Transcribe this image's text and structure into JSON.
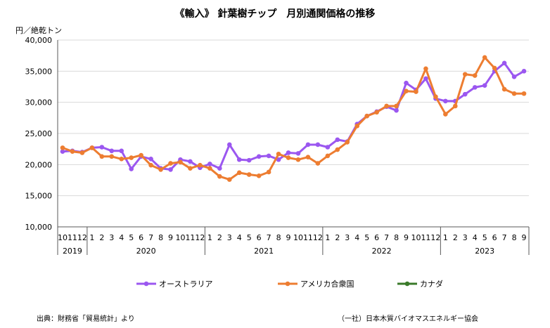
{
  "chart_data": {
    "type": "line",
    "title": "《輸入》 針葉樹チップ　月別通関価格の推移",
    "ylabel": "円／絶乾トン",
    "ylim": [
      10000,
      40000
    ],
    "yticks": [
      "10,000",
      "15,000",
      "20,000",
      "25,000",
      "30,000",
      "35,000",
      "40,000"
    ],
    "ytick_values": [
      10000,
      15000,
      20000,
      25000,
      30000,
      35000,
      40000
    ],
    "grid": "horizontal",
    "legend_position": "bottom",
    "months": [
      "10",
      "11",
      "12",
      "1",
      "2",
      "3",
      "4",
      "5",
      "6",
      "7",
      "8",
      "9",
      "10",
      "11",
      "12",
      "1",
      "2",
      "3",
      "4",
      "5",
      "6",
      "7",
      "8",
      "9",
      "10",
      "11",
      "12",
      "1",
      "2",
      "3",
      "4",
      "5",
      "6",
      "7",
      "8",
      "9",
      "10",
      "11",
      "12",
      "1",
      "2",
      "3",
      "4",
      "5",
      "6",
      "7",
      "8",
      "9"
    ],
    "years": [
      {
        "label": "2019",
        "count": 3
      },
      {
        "label": "2020",
        "count": 12
      },
      {
        "label": "2021",
        "count": 12
      },
      {
        "label": "2022",
        "count": 12
      },
      {
        "label": "2023",
        "count": 9
      }
    ],
    "series": [
      {
        "name": "オーストラリア",
        "color": "#9b57f0",
        "values": [
          22100,
          22200,
          22000,
          22700,
          22800,
          22200,
          22200,
          19300,
          21300,
          20900,
          19400,
          19200,
          20800,
          20500,
          19500,
          20100,
          19400,
          23200,
          20800,
          20700,
          21300,
          21400,
          20800,
          21900,
          21800,
          23200,
          23200,
          22800,
          24000,
          23700,
          26500,
          27800,
          28500,
          29300,
          28700,
          33100,
          32000,
          33800,
          30600,
          30200,
          30200,
          31300,
          32400,
          32700,
          35000,
          36300,
          34100,
          35000
        ]
      },
      {
        "name": "アメリカ合衆国",
        "color": "#ed7d31",
        "values": [
          22700,
          22100,
          21900,
          22700,
          21300,
          21300,
          20900,
          21100,
          21500,
          19900,
          19200,
          20200,
          20400,
          19400,
          19900,
          19400,
          18100,
          17600,
          18700,
          18400,
          18200,
          18800,
          21700,
          21100,
          20800,
          21200,
          20200,
          21400,
          22400,
          23600,
          26200,
          27800,
          28400,
          29400,
          29400,
          31800,
          31700,
          35400,
          30900,
          28100,
          29400,
          34500,
          34300,
          37200,
          35500,
          32100,
          31400,
          31400
        ]
      },
      {
        "name": "カナダ",
        "color": "#3a7a2a",
        "values": []
      }
    ]
  },
  "footer": {
    "source": "出典：財務省「貿易統計」より",
    "publisher": "（一社）日本木質バイオマスエネルギー協会"
  }
}
